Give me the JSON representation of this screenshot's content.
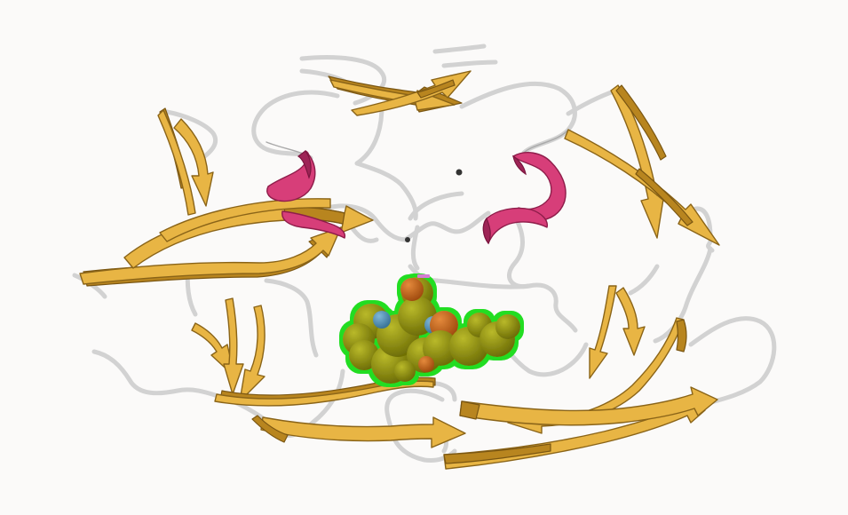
{
  "image": {
    "kind": "protein-structure-render",
    "background_color": "#fbfaf9",
    "representation": "cartoon",
    "colors": {
      "beta_strand": "#e8b544",
      "alpha_helix": "#d73e79",
      "coil": "#d2d2d2",
      "ligand_carbon": "#8c8c10",
      "ligand_oxygen": "#c9651a",
      "ligand_nitrogen": "#4f8fb4",
      "ligand_outline": "#22dd22"
    },
    "elements": [
      "beta-sheets",
      "alpha-helices",
      "loops",
      "bound-ligand-spacefill"
    ]
  }
}
